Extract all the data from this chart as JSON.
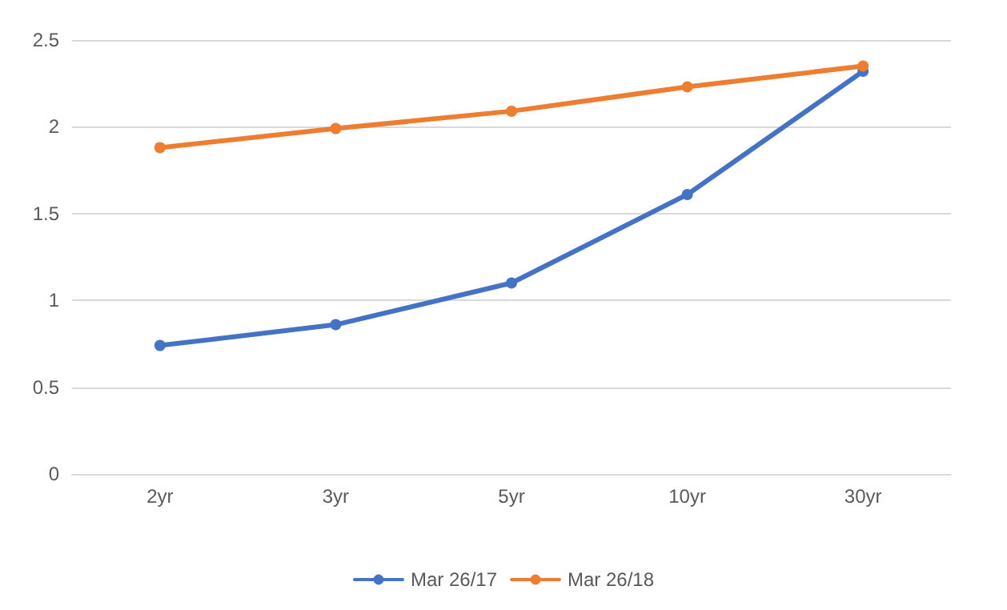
{
  "chart_data": {
    "type": "line",
    "categories": [
      "2yr",
      "3yr",
      "5yr",
      "10yr",
      "30yr"
    ],
    "series": [
      {
        "name": "Mar 26/17",
        "color": "#4472c4",
        "values": [
          0.74,
          0.86,
          1.1,
          1.61,
          2.32
        ]
      },
      {
        "name": "Mar 26/18",
        "color": "#ed7d31",
        "values": [
          1.88,
          1.99,
          2.09,
          2.23,
          2.35
        ]
      }
    ],
    "ylim": [
      0,
      2.5
    ],
    "yticks": [
      0,
      0.5,
      1,
      1.5,
      2,
      2.5
    ],
    "grid": "y",
    "legend": "bottom",
    "marker": "circle",
    "line_style": "solid"
  }
}
